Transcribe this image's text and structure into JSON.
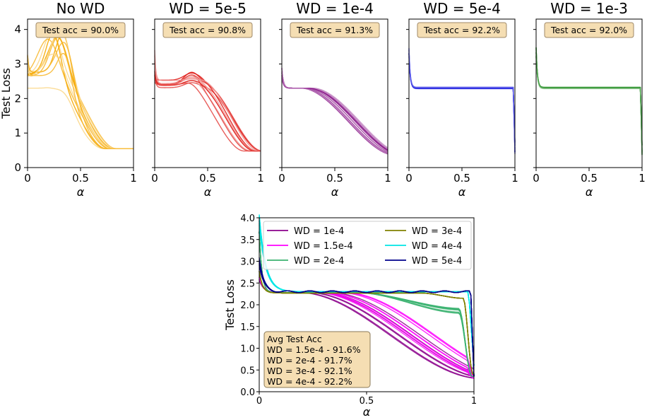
{
  "chart_data": [
    {
      "type": "line",
      "title": "No WD",
      "xlabel": "α",
      "ylabel": "Test Loss",
      "xlim": [
        0,
        1
      ],
      "ylim": [
        0,
        4.3
      ],
      "xticks": [
        "0",
        "0.5",
        "1"
      ],
      "yticks": [
        "0",
        "1",
        "2",
        "3",
        "4"
      ],
      "annotation": "Test acc = 90.0%",
      "color": "#f5a800"
    },
    {
      "type": "line",
      "title": "WD = 5e-5",
      "xlabel": "α",
      "xlim": [
        0,
        1
      ],
      "ylim": [
        0,
        4.3
      ],
      "xticks": [
        "0",
        "0.5",
        "1"
      ],
      "annotation": "Test acc = 90.8%",
      "color": "#e0201c"
    },
    {
      "type": "line",
      "title": "WD = 1e-4",
      "xlabel": "α",
      "xlim": [
        0,
        1
      ],
      "ylim": [
        0,
        4.3
      ],
      "xticks": [
        "0",
        "0.5",
        "1"
      ],
      "annotation": "Test acc = 91.3%",
      "color": "#8b1a8b"
    },
    {
      "type": "line",
      "title": "WD = 5e-4",
      "xlabel": "α",
      "xlim": [
        0,
        1
      ],
      "ylim": [
        0,
        4.3
      ],
      "xticks": [
        "0",
        "0.5",
        "1"
      ],
      "annotation": "Test acc = 92.2%",
      "color": "#1c1ce0"
    },
    {
      "type": "line",
      "title": "WD = 1e-3",
      "xlabel": "α",
      "xlim": [
        0,
        1
      ],
      "ylim": [
        0,
        4.3
      ],
      "xticks": [
        "0",
        "0.5",
        "1"
      ],
      "annotation": "Test acc = 92.0%",
      "color": "#1c8a1c"
    },
    {
      "type": "line",
      "title": "",
      "xlabel": "α",
      "ylabel": "Test Loss",
      "xlim": [
        0,
        1
      ],
      "ylim": [
        0,
        4.0
      ],
      "xticks": [
        "0",
        "0.5",
        "1"
      ],
      "yticks": [
        "0.0",
        "0.5",
        "1.0",
        "1.5",
        "2.0",
        "2.5",
        "3.0",
        "3.5",
        "4.0"
      ],
      "series": [
        {
          "name": "WD =    1e-4",
          "color": "#8b008b"
        },
        {
          "name": "WD = 1.5e-4",
          "color": "#ff00ff"
        },
        {
          "name": "WD =    2e-4",
          "color": "#3cb371"
        },
        {
          "name": "WD = 3e-4",
          "color": "#808000"
        },
        {
          "name": "WD = 4e-4",
          "color": "#00e5e5"
        },
        {
          "name": "WD = 5e-4",
          "color": "#00008b"
        }
      ],
      "annotation_title": "Avg Test Acc",
      "annotation_lines": [
        " WD = 1.5e-4  - 91.6%",
        " WD = 2e-4     - 91.7%",
        " WD = 3e-4     - 92.1%",
        " WD = 4e-4     - 92.2%"
      ]
    }
  ]
}
